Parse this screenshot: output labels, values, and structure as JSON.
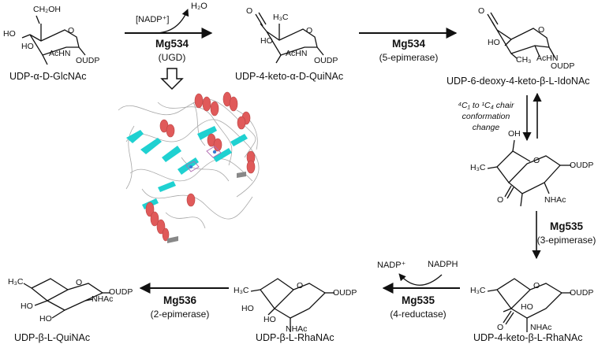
{
  "compounds": [
    {
      "id": "c1",
      "name": "UDP-α-D-GlcNAc",
      "atoms": [
        "CH₂OH",
        "HO",
        "HO",
        "AcHN",
        "O",
        "OUDP"
      ]
    },
    {
      "id": "c2",
      "name": "UDP-4-keto-α-D-QuiNAc",
      "atoms": [
        "O",
        "H₃C",
        "HO",
        "AcHN",
        "O",
        "OUDP"
      ]
    },
    {
      "id": "c3",
      "name": "UDP-6-deoxy-4-keto-β-L-IdoNAc",
      "atoms": [
        "O",
        "HO",
        "CH₃",
        "AcHN",
        "O",
        "OUDP"
      ]
    },
    {
      "id": "c4",
      "name": "",
      "atoms": [
        "OH",
        "O",
        "OUDP",
        "H₃C",
        "O",
        "NHAc"
      ]
    },
    {
      "id": "c5",
      "name": "UDP-4-keto-β-L-RhaNAc",
      "atoms": [
        "H₃C",
        "O",
        "OUDP",
        "O",
        "HO",
        "NHAc"
      ]
    },
    {
      "id": "c6",
      "name": "UDP-β-L-RhaNAc",
      "atoms": [
        "H₃C",
        "O",
        "OUDP",
        "HO",
        "HO",
        "NHAc"
      ]
    },
    {
      "id": "c7",
      "name": "UDP-β-L-QuiNAc",
      "atoms": [
        "H₃C",
        "O",
        "OUDP",
        "HO",
        "HO",
        "NHAc"
      ]
    }
  ],
  "steps": [
    {
      "id": "s1",
      "cofactor": "[NADP⁺]",
      "product": "H₂O",
      "enzyme": "Mg534",
      "activity": "(UGD)"
    },
    {
      "id": "s2",
      "enzyme": "Mg534",
      "activity": "(5-epimerase)"
    },
    {
      "id": "s3",
      "note": "⁴C₁ to ¹C₄ chair conformation change"
    },
    {
      "id": "s4",
      "enzyme": "Mg535",
      "activity": "(3-epimerase)"
    },
    {
      "id": "s5",
      "enzyme": "Mg535",
      "activity": "(4-reductase)",
      "cofactor_in": "NADPH",
      "cofactor_out": "NADP⁺"
    },
    {
      "id": "s6",
      "enzyme": "Mg536",
      "activity": "(2-epimerase)"
    }
  ],
  "colors": {
    "helix": "#e05a5a",
    "strand": "#1fd1d1",
    "coil": "#9a9a9a",
    "turn": "#888888"
  }
}
